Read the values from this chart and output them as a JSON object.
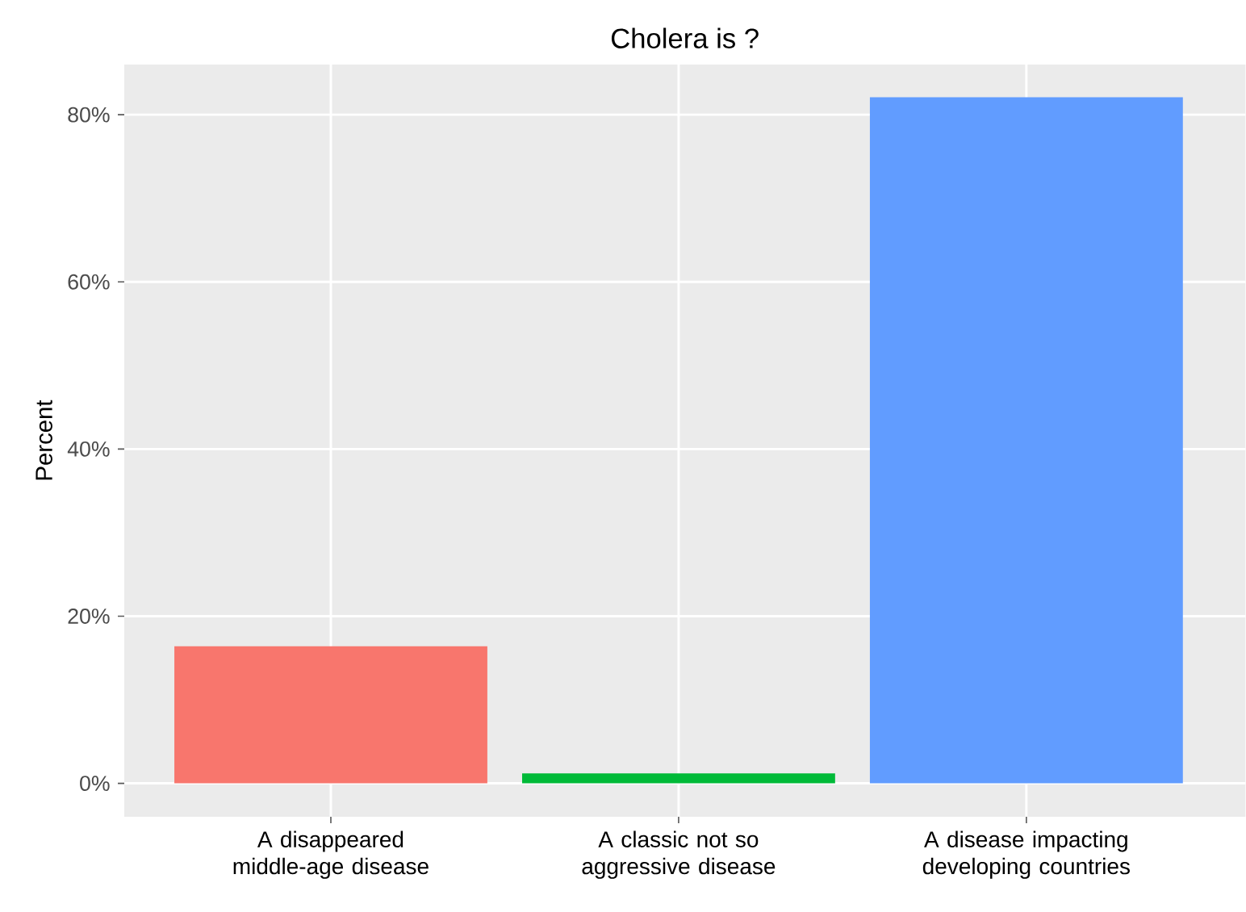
{
  "chart_data": {
    "type": "bar",
    "title": "Cholera is ?",
    "ylabel": "Percent",
    "categories": [
      "A disappeared middle-age disease",
      "A classic not so aggressive disease",
      "A disease impacting developing countries"
    ],
    "values": [
      16.4,
      1.2,
      82.1
    ],
    "colors": [
      "#f8766d",
      "#00ba38",
      "#619cff"
    ],
    "ylim": [
      -4,
      86
    ],
    "yticks": [
      {
        "value": 0,
        "label": "0%"
      },
      {
        "value": 20,
        "label": "20%"
      },
      {
        "value": 40,
        "label": "40%"
      },
      {
        "value": 60,
        "label": "60%"
      },
      {
        "value": 80,
        "label": "80%"
      }
    ],
    "grid": true
  }
}
